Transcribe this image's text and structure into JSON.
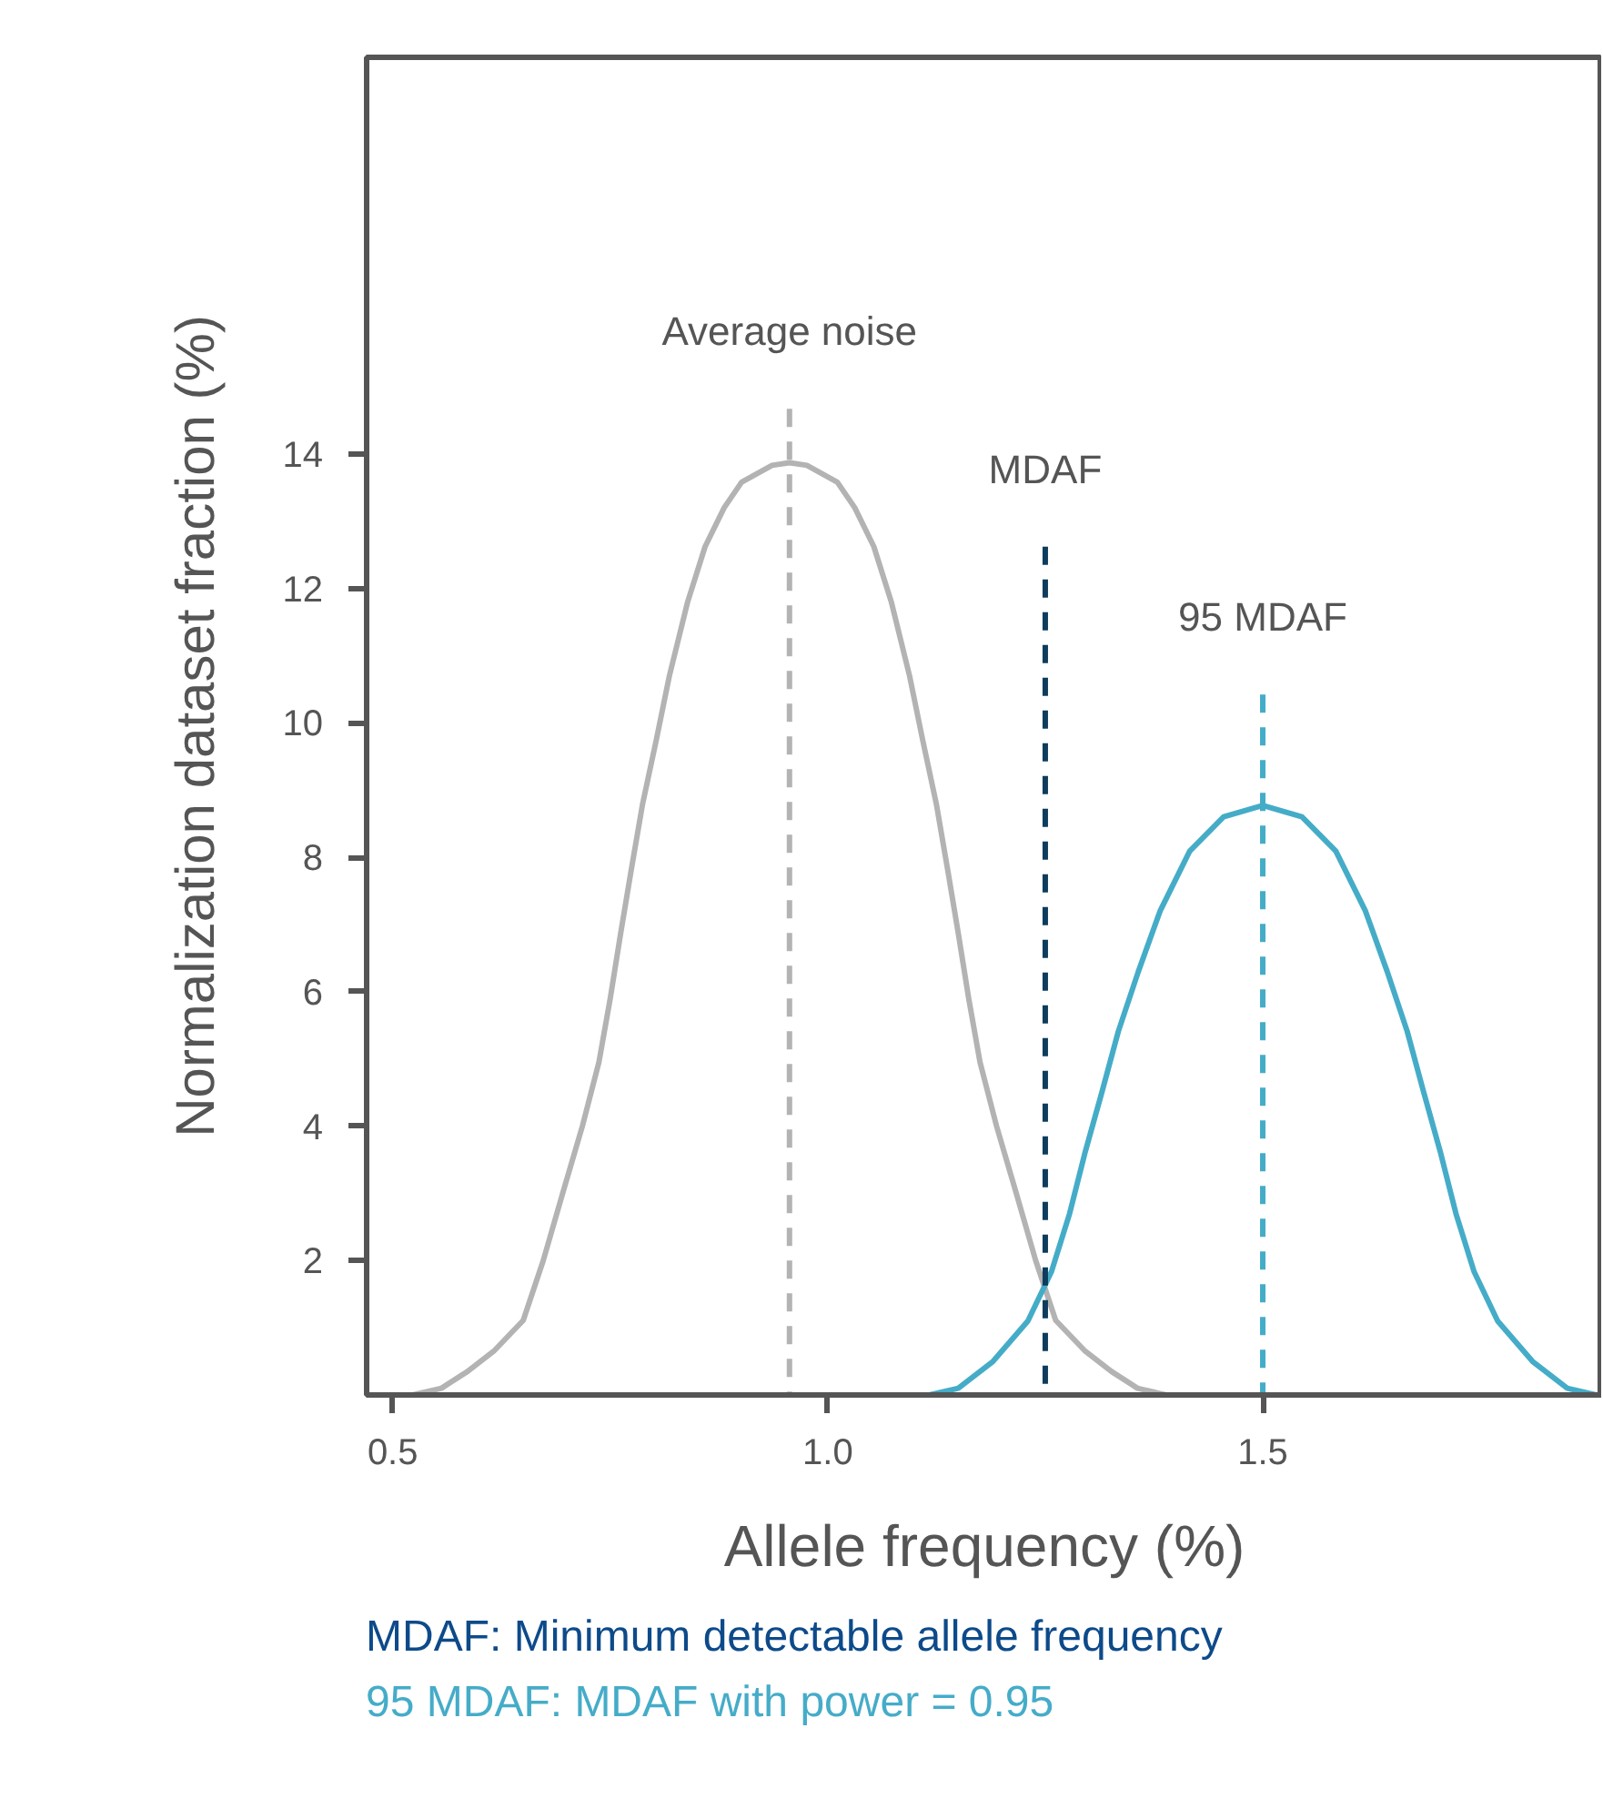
{
  "chart_data": {
    "type": "line",
    "xlabel": "Allele frequency (%)",
    "ylabel": "Normalization dataset fraction (%)",
    "xlim": [
      0.47,
      1.89
    ],
    "ylim": [
      0,
      19.9
    ],
    "xticks": [
      {
        "value": 0.5,
        "label": "0.5"
      },
      {
        "value": 1.0,
        "label": "1.0"
      },
      {
        "value": 1.5,
        "label": "1.5"
      }
    ],
    "yticks": [
      2,
      4,
      6,
      8,
      10,
      12,
      14
    ],
    "series": [
      {
        "color": "#b3b3b3",
        "x": [
          0.523,
          0.556,
          0.586,
          0.616,
          0.65,
          0.673,
          0.696,
          0.718,
          0.737,
          0.75,
          0.762,
          0.774,
          0.787,
          0.803,
          0.818,
          0.839,
          0.859,
          0.881,
          0.901,
          0.936,
          0.956,
          0.976,
          1.011,
          1.031,
          1.053,
          1.073,
          1.094,
          1.109,
          1.125,
          1.138,
          1.15,
          1.162,
          1.175,
          1.194,
          1.216,
          1.239,
          1.262,
          1.296,
          1.326,
          1.356,
          1.389
        ],
        "values": [
          0,
          0.1,
          0.35,
          0.65,
          1.11,
          2.0,
          3.03,
          4.0,
          4.95,
          5.9,
          6.87,
          7.8,
          8.78,
          9.75,
          10.7,
          11.8,
          12.62,
          13.2,
          13.58,
          13.83,
          13.87,
          13.83,
          13.58,
          13.2,
          12.62,
          11.8,
          10.7,
          9.75,
          8.78,
          7.8,
          6.87,
          5.9,
          4.95,
          4.0,
          3.03,
          2.0,
          1.11,
          0.65,
          0.35,
          0.1,
          0
        ]
      },
      {
        "color": "#45acc8",
        "x": [
          1.117,
          1.15,
          1.19,
          1.23,
          1.257,
          1.278,
          1.296,
          1.315,
          1.334,
          1.357,
          1.382,
          1.416,
          1.455,
          1.5,
          1.545,
          1.584,
          1.618,
          1.643,
          1.666,
          1.685,
          1.704,
          1.722,
          1.743,
          1.77,
          1.81,
          1.85,
          1.883
        ],
        "values": [
          0,
          0.1,
          0.5,
          1.1,
          1.83,
          2.7,
          3.62,
          4.5,
          5.41,
          6.3,
          7.2,
          8.09,
          8.6,
          8.77,
          8.6,
          8.09,
          7.2,
          6.3,
          5.41,
          4.5,
          3.62,
          2.7,
          1.83,
          1.1,
          0.5,
          0.1,
          0
        ]
      },
      {
        "color": "#b3b3b3",
        "line_style": "dashed",
        "x": [
          0.956,
          0.956
        ],
        "values": [
          14.67,
          0
        ]
      },
      {
        "color": "#0d3c5c",
        "line_style": "dashed",
        "x": [
          1.25,
          1.25
        ],
        "values": [
          12.62,
          0
        ]
      },
      {
        "color": "#45acc8",
        "line_style": "dashed",
        "x": [
          1.5,
          1.5
        ],
        "values": [
          10.42,
          0
        ]
      }
    ],
    "annotations": [
      {
        "text": "Average noise",
        "x": 0.956,
        "y": 14.67
      },
      {
        "text": "MDAF",
        "x": 1.25,
        "y": 12.62
      },
      {
        "text": "95 MDAF",
        "x": 1.5,
        "y": 10.42
      },
      "MDAF: Minimum detectable allele frequency",
      "95 MDAF: MDAF with power = 0.95"
    ]
  }
}
